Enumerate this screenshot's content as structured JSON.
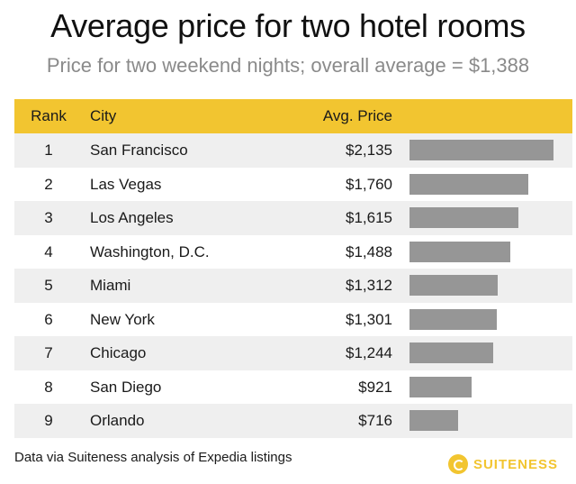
{
  "header": {
    "title": "Average price for two hotel rooms",
    "subtitle": "Price for two weekend nights; overall average = $1,388"
  },
  "table": {
    "columns": [
      "Rank",
      "City",
      "Avg. Price"
    ]
  },
  "chart_data": {
    "type": "bar",
    "title": "Average price for two hotel rooms",
    "subtitle": "Price for two weekend nights; overall average = $1,388",
    "categories": [
      "San Francisco",
      "Las Vegas",
      "Los Angeles",
      "Washington, D.C.",
      "Miami",
      "New York",
      "Chicago",
      "San Diego",
      "Orlando"
    ],
    "ranks": [
      "1",
      "2",
      "3",
      "4",
      "5",
      "6",
      "7",
      "8",
      "9"
    ],
    "values": [
      2135,
      1760,
      1615,
      1488,
      1312,
      1301,
      1244,
      921,
      716
    ],
    "value_labels": [
      "$2,135",
      "$1,760",
      "$1,615",
      "$1,488",
      "$1,312",
      "$1,301",
      "$1,244",
      "$921",
      "$716"
    ],
    "xlim": [
      0,
      2135
    ],
    "xlabel": "",
    "ylabel": "",
    "orientation": "horizontal"
  },
  "footer": {
    "source": "Data via Suiteness analysis of Expedia listings",
    "brand": "SUITENESS"
  },
  "colors": {
    "header_bg": "#f2c530",
    "bar": "#969696",
    "alt_row": "#efefef",
    "brand": "#f2c530"
  }
}
